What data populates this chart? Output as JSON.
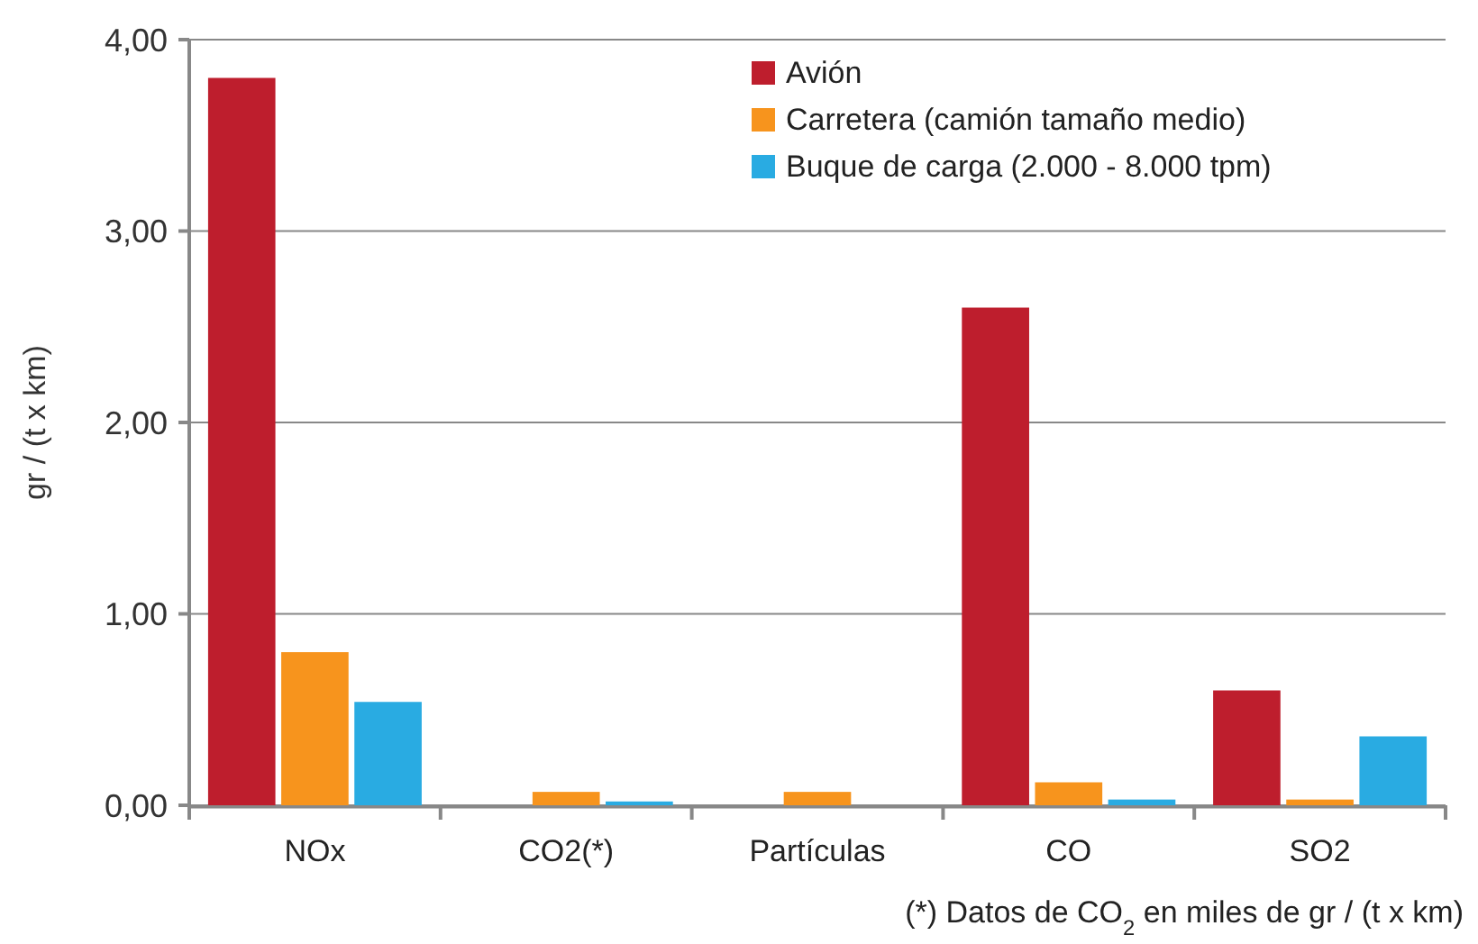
{
  "chart_data": {
    "type": "bar",
    "categories": [
      "NOx",
      "CO2(*)",
      "Partículas",
      "CO",
      "SO2"
    ],
    "series": [
      {
        "name": "Avión",
        "color": "#be1e2d",
        "values": [
          3.8,
          0,
          0,
          2.6,
          0.6
        ]
      },
      {
        "name": "Carretera (camión tamaño medio)",
        "color": "#f7941d",
        "values": [
          0.8,
          0.07,
          0.07,
          0.12,
          0.03
        ]
      },
      {
        "name": "Buque de carga (2.000 - 8.000 tpm)",
        "color": "#29abe2",
        "values": [
          0.54,
          0.02,
          0,
          0.03,
          0.36
        ]
      }
    ],
    "ylabel": "gr / (t x km)",
    "ylim": [
      0,
      4
    ],
    "yticks": [
      {
        "value": 0,
        "label": "0,00"
      },
      {
        "value": 1,
        "label": "1,00"
      },
      {
        "value": 2,
        "label": "2,00"
      },
      {
        "value": 3,
        "label": "3,00"
      },
      {
        "value": 4,
        "label": "4,00"
      }
    ],
    "grid": "y",
    "legend": "top right",
    "annotations": [
      "(*) Datos de CO$_{2}$ en miles de gr / (t x km)"
    ]
  }
}
